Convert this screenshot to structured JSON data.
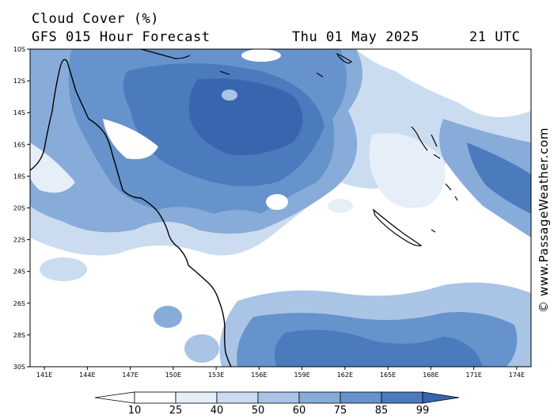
{
  "header": {
    "title": "Cloud Cover (%)",
    "model": "GFS 015 Hour Forecast",
    "date": "Thu 01 May 2025",
    "time": "21 UTC"
  },
  "credit": "© www.PassageWeather.com",
  "map": {
    "lat_labels": [
      "10S",
      "12S",
      "14S",
      "16S",
      "18S",
      "20S",
      "22S",
      "24S",
      "26S",
      "28S",
      "30S"
    ],
    "lon_labels": [
      "141E",
      "144E",
      "147E",
      "150E",
      "153E",
      "156E",
      "159E",
      "162E",
      "165E",
      "168E",
      "171E",
      "174E"
    ],
    "lat_range": [
      -30,
      -10
    ],
    "lon_range": [
      140,
      175
    ],
    "colors": {
      "c10": "#ffffff",
      "c25": "#e6eef8",
      "c40": "#cbdcf0",
      "c50": "#a9c4e5",
      "c60": "#88acd9",
      "c75": "#6693cc",
      "c85": "#4b7bbd",
      "c99": "#3865ad"
    },
    "coastline_color": "#000000"
  },
  "colorbar": {
    "labels": [
      "10",
      "25",
      "40",
      "50",
      "60",
      "75",
      "85",
      "99"
    ],
    "colors": [
      "#ffffff",
      "#e6eef8",
      "#cbdcf0",
      "#a9c4e5",
      "#88acd9",
      "#6693cc",
      "#4b7bbd",
      "#3865ad"
    ]
  }
}
